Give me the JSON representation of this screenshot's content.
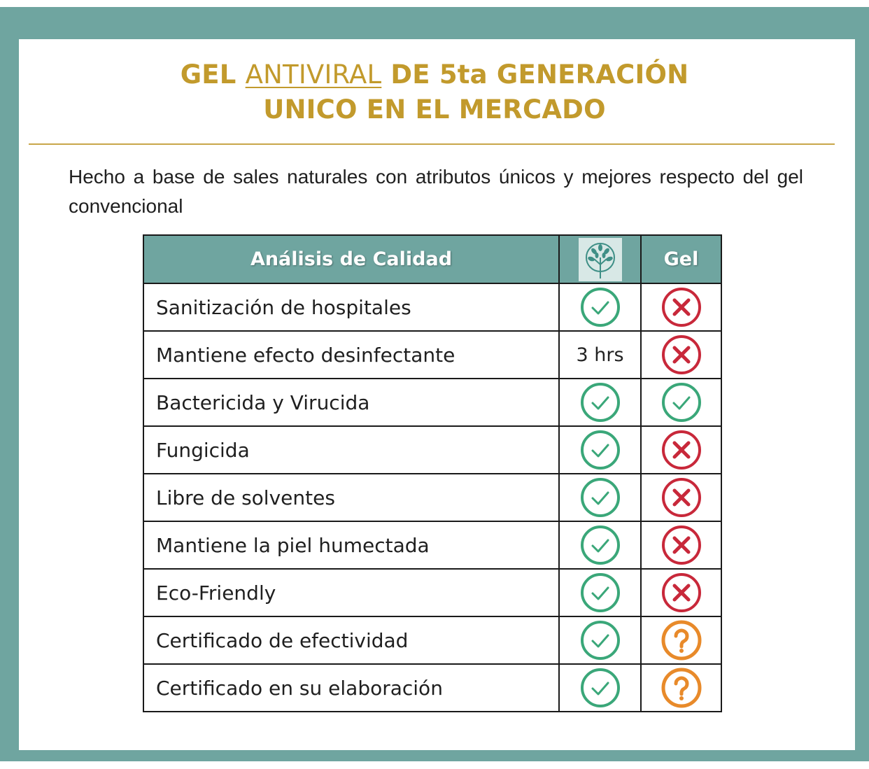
{
  "title": {
    "line1_prefix": "GEL ",
    "line1_underlined": "ANTIVIRAL",
    "line1_suffix": " DE 5ta GENERACIÓN",
    "line2": "UNICO EN EL MERCADO"
  },
  "intro": "Hecho a base de sales naturales con atributos únicos y mejores respecto del gel convencional",
  "table": {
    "headers": {
      "criteria": "Análisis de Calidad",
      "brand_icon": "tree-logo-icon",
      "gel": "Gel"
    },
    "rows": [
      {
        "label": "Sanitización de hospitales",
        "brand": "check",
        "gel": "cross"
      },
      {
        "label": "Mantiene efecto desinfectante",
        "brand": "3 hrs",
        "gel": "cross"
      },
      {
        "label": "Bactericida y Virucida",
        "brand": "check",
        "gel": "check"
      },
      {
        "label": "Fungicida",
        "brand": "check",
        "gel": "cross"
      },
      {
        "label": "Libre de solventes",
        "brand": "check",
        "gel": "cross"
      },
      {
        "label": "Mantiene la piel humectada",
        "brand": "check",
        "gel": "cross"
      },
      {
        "label": "Eco-Friendly",
        "brand": "check",
        "gel": "cross"
      },
      {
        "label": "Certificado de efectividad",
        "brand": "check",
        "gel": "question"
      },
      {
        "label": "Certificado en su elaboración",
        "brand": "check",
        "gel": "question"
      }
    ]
  },
  "colors": {
    "frame": "#6fa5a0",
    "title": "#c29a2c",
    "check": "#3aa779",
    "cross": "#c8283a",
    "question": "#e88a2a"
  }
}
